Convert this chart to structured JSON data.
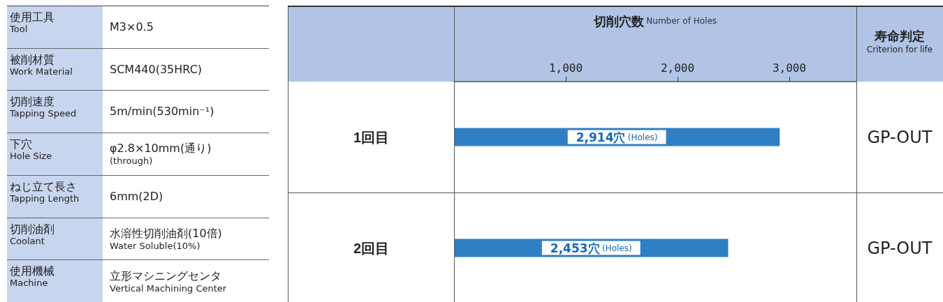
{
  "chart_data": [
    {
      "type": "other",
      "annotations": [
        "使用工具\nTool",
        "M3×0.5",
        "被削材質\nWork Material",
        "SCM440(35HRC)",
        "切削速度\nTapping Speed",
        "5m/min(530min⁻¹)",
        "下穴\nHole Size",
        "φ2.8×10mm(通り)\n(through)",
        "ねじ立て長さ\nTapping Length",
        "6mm(2D)",
        "切削油剤\nCoolant",
        "水溶性切削油剤(10倍)\nWater Soluble(10%)",
        "使用機械\nMachine",
        "立形マシニングセンタ\nVertical Machining Center"
      ]
    },
    {
      "type": "bar",
      "orientation": "horizontal",
      "categories": [
        "1回目",
        "2回目"
      ],
      "values": [
        2914,
        2453
      ],
      "color": "#2f7fc4",
      "value_labels": [
        "2,914穴 (Holes)",
        "2,453穴 (Holes)"
      ],
      "xlabel": "切削穴数 Number of Holes",
      "xlim": [
        0,
        3600
      ],
      "xticks": [
        {
          "value": 1000,
          "label": "1,000"
        },
        {
          "value": 2000,
          "label": "2,000"
        },
        {
          "value": 3000,
          "label": "3,000"
        }
      ],
      "annotations": [
        "寿命判定\nCriterion for life",
        "GP-OUT",
        "GP-OUT"
      ]
    }
  ]
}
